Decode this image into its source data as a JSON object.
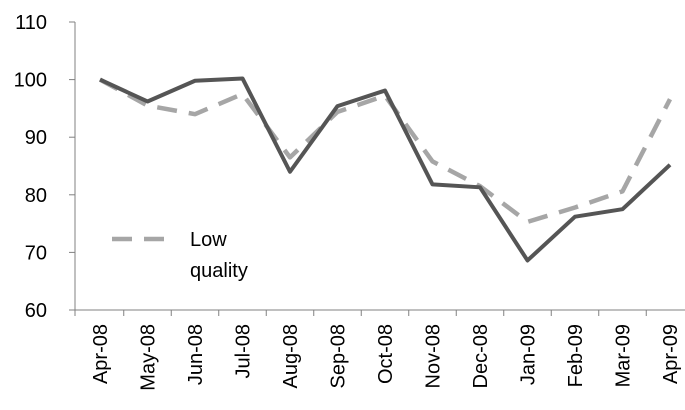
{
  "chart_data": {
    "type": "line",
    "title": "",
    "xlabel": "",
    "ylabel": "",
    "categories": [
      "Apr-08",
      "May-08",
      "Jun-08",
      "Jul-08",
      "Aug-08",
      "Sep-08",
      "Oct-08",
      "Nov-08",
      "Dec-08",
      "Jan-09",
      "Feb-09",
      "Mar-09",
      "Apr-09"
    ],
    "ylim": [
      60,
      110
    ],
    "yticks": [
      60,
      70,
      80,
      90,
      100,
      110
    ],
    "grid": false,
    "legend_position": "left",
    "series": [
      {
        "key": "solid",
        "values": [
          100,
          96.2,
          99.8,
          100.2,
          84.0,
          95.4,
          98.1,
          81.8,
          81.3,
          68.6,
          76.2,
          77.5,
          85.2
        ],
        "color": "#555555",
        "style": "solid"
      },
      {
        "key": "low",
        "name": "Low quality",
        "legend_lines": [
          "Low",
          "quality"
        ],
        "values": [
          100,
          95.5,
          94.0,
          97.5,
          86.5,
          94.4,
          97.2,
          85.8,
          81.5,
          75.3,
          77.8,
          80.6,
          96.6
        ],
        "color": "#A6A6A6",
        "style": "dashed"
      }
    ]
  }
}
